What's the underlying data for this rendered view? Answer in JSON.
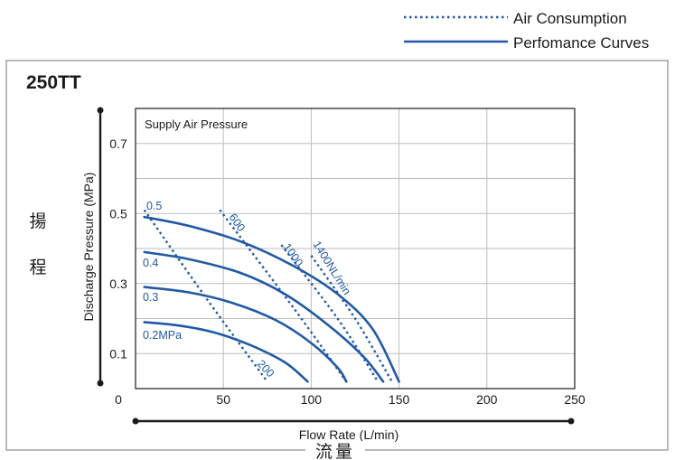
{
  "chart_data": {
    "type": "line",
    "title": "250TT",
    "xlabel": "Flow Rate (L/min)",
    "ylabel": "Discharge Pressure (MPa)",
    "xlabel_cjk": "流量",
    "ylabel_cjk": "揚程",
    "legend_placement": "top-right",
    "legend": {
      "air": "Air Consumption",
      "perf": "Perfomance Curves"
    },
    "annotation": "Supply Air Pressure",
    "xlim": [
      0,
      250
    ],
    "ylim": [
      0,
      0.8
    ],
    "x_ticks": [
      0,
      50,
      100,
      150,
      200,
      250
    ],
    "x_tick_labels": [
      "0",
      "50",
      "100",
      "150",
      "200",
      "250"
    ],
    "y_ticks": [
      0.1,
      0.3,
      0.5,
      0.7
    ],
    "y_tick_labels": [
      "0.1",
      "0.3",
      "0.5",
      "0.7"
    ],
    "grid": true,
    "colors": {
      "curve": "#2159a4",
      "grid": "#bdbdbd",
      "axis": "#1a1a1a",
      "frame": "#8c8c8c",
      "text": "#1a1a1a"
    },
    "performance_curves": [
      {
        "label": "0.5",
        "points": [
          [
            5,
            0.49
          ],
          [
            30,
            0.465
          ],
          [
            60,
            0.42
          ],
          [
            90,
            0.35
          ],
          [
            115,
            0.27
          ],
          [
            135,
            0.17
          ],
          [
            150,
            0.02
          ]
        ]
      },
      {
        "label": "0.4",
        "points": [
          [
            5,
            0.39
          ],
          [
            30,
            0.37
          ],
          [
            60,
            0.33
          ],
          [
            85,
            0.27
          ],
          [
            110,
            0.18
          ],
          [
            130,
            0.09
          ],
          [
            141,
            0.02
          ]
        ]
      },
      {
        "label": "0.3",
        "points": [
          [
            5,
            0.29
          ],
          [
            30,
            0.275
          ],
          [
            55,
            0.245
          ],
          [
            80,
            0.195
          ],
          [
            100,
            0.13
          ],
          [
            115,
            0.06
          ],
          [
            120,
            0.02
          ]
        ]
      },
      {
        "label": "0.2MPa",
        "points": [
          [
            5,
            0.19
          ],
          [
            25,
            0.18
          ],
          [
            45,
            0.16
          ],
          [
            65,
            0.125
          ],
          [
            85,
            0.075
          ],
          [
            98,
            0.02
          ]
        ]
      }
    ],
    "air_consumption_curves": [
      {
        "label": "200",
        "points": [
          [
            5,
            0.51
          ],
          [
            40,
            0.26
          ],
          [
            75,
            0.02
          ]
        ]
      },
      {
        "label": "600",
        "points": [
          [
            48,
            0.51
          ],
          [
            90,
            0.23
          ],
          [
            120,
            0.02
          ]
        ]
      },
      {
        "label": "1000",
        "points": [
          [
            83,
            0.41
          ],
          [
            115,
            0.2
          ],
          [
            138,
            0.02
          ]
        ]
      },
      {
        "label": "1400NL/min",
        "points": [
          [
            100,
            0.38
          ],
          [
            125,
            0.2
          ],
          [
            146,
            0.02
          ]
        ]
      }
    ]
  }
}
